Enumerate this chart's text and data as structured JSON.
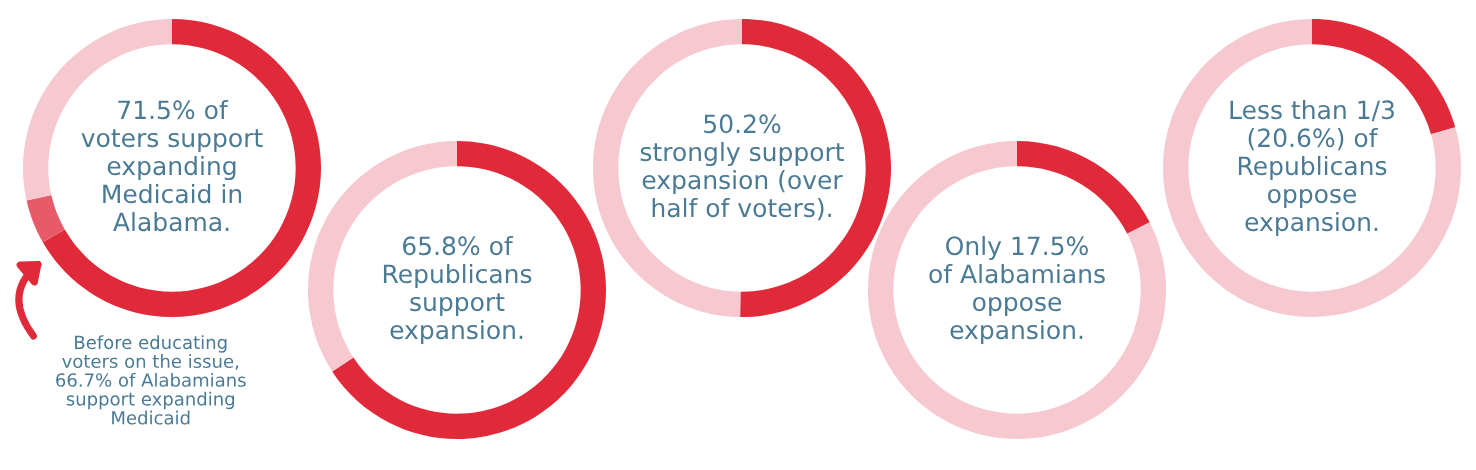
{
  "chart_data": [
    {
      "type": "donut",
      "categories": [
        null,
        null,
        null
      ],
      "values": [
        66.7,
        4.8,
        28.5
      ],
      "colors": [
        "#e02a3a",
        "#e85a6a",
        "#f5c9cf"
      ],
      "annotations": [
        "71.5% of\nvoters support\nexpanding\nMedicaid in\nAlabama.",
        "Before educating\nvoters on the issue,\n66.7% of Alabamians\nsupport expanding\nMedicaid"
      ]
    },
    {
      "type": "donut",
      "categories": [
        null,
        null
      ],
      "values": [
        65.8,
        34.2
      ],
      "colors": [
        "#e02a3a",
        "#f5c9cf"
      ],
      "annotations": [
        "65.8% of\nRepublicans\nsupport\nexpansion."
      ]
    },
    {
      "type": "donut",
      "categories": [
        null,
        null
      ],
      "values": [
        50.2,
        49.8
      ],
      "colors": [
        "#e02a3a",
        "#f5c9cf"
      ],
      "annotations": [
        "50.2%\nstrongly support\nexpansion (over\nhalf of voters)."
      ]
    },
    {
      "type": "donut",
      "categories": [
        null,
        null
      ],
      "values": [
        17.5,
        82.5
      ],
      "colors": [
        "#e02a3a",
        "#f5c9cf"
      ],
      "annotations": [
        "Only 17.5%\nof Alabamians\noppose\nexpansion."
      ]
    },
    {
      "type": "donut",
      "categories": [
        null,
        null
      ],
      "values": [
        20.6,
        79.4
      ],
      "colors": [
        "#e02a3a",
        "#f5c9cf"
      ],
      "annotations": [
        "Less than 1/3\n(20.6%) of\nRepublicans\noppose\nexpansion."
      ]
    }
  ]
}
